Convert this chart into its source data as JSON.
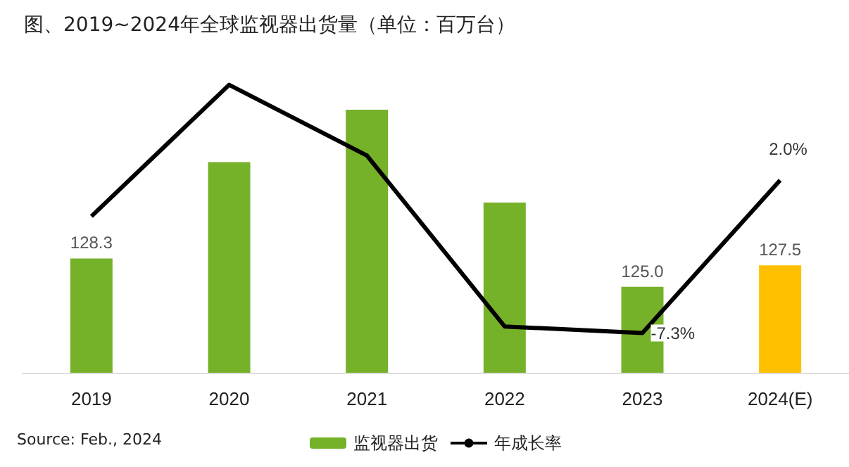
{
  "chart_data": {
    "type": "bar",
    "title": "图、2019~2024年全球监视器出货量（单位：百万台）",
    "annotations": [
      "Source: Feb., 2024"
    ],
    "categories": [
      "2019",
      "2020",
      "2021",
      "2022",
      "2023",
      "2024(E)"
    ],
    "series": [
      {
        "name": "监视器出货",
        "color": "#76b12a",
        "colors": [
          "#76b12a",
          "#76b12a",
          "#76b12a",
          "#76b12a",
          "#76b12a",
          "#ffc000"
        ],
        "values": [
          128.3,
          139.5,
          145.6,
          134.8,
          125.0,
          127.5
        ],
        "value_labels": [
          "128.3",
          null,
          null,
          null,
          "125.0",
          "127.5"
        ]
      },
      {
        "name": "年成长率",
        "type": "line",
        "axis": "y2",
        "color": "#000000",
        "values": [
          -0.2,
          7.8,
          3.5,
          -6.9,
          -7.3,
          2.0
        ],
        "value_labels": [
          null,
          null,
          null,
          null,
          "-7.3%",
          "2.0%"
        ]
      }
    ],
    "ylim": [
      115,
      145.6
    ],
    "tick_labels": "x",
    "legend": "bottom",
    "marker": "none",
    "line_style": "solid"
  }
}
